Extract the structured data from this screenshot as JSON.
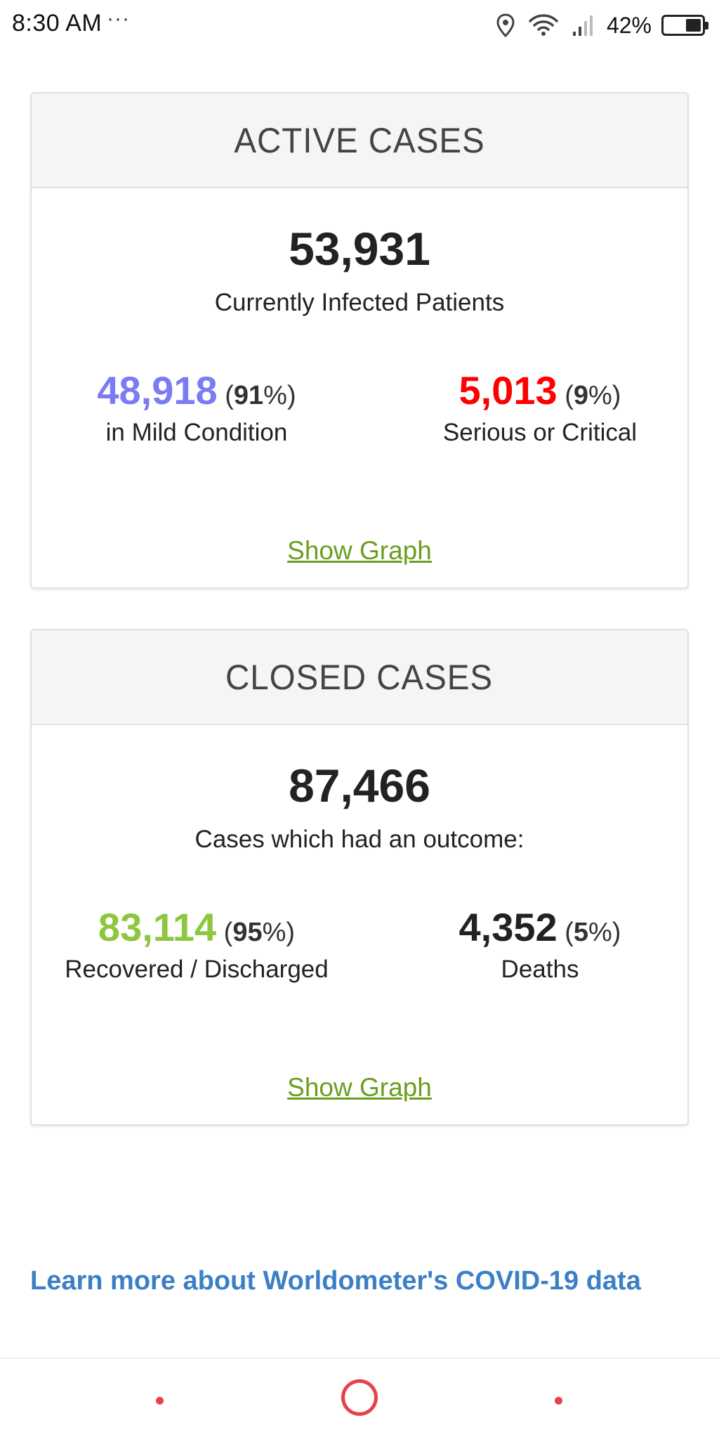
{
  "status_bar": {
    "time": "8:30 AM",
    "more_indicator": "···",
    "icons": [
      "location-icon",
      "wifi-icon",
      "cellular-signal-icon",
      "battery-icon"
    ],
    "battery_percent": "42%",
    "battery_level": 0.42
  },
  "colors": {
    "mild": "#7b7bf5",
    "critical": "#ff0000",
    "recovered": "#8dc63f",
    "deaths": "#222222",
    "link_green": "#6a9e1f",
    "link_blue": "#3b7fc4",
    "nav_accent": "#e5434b"
  },
  "active_cases": {
    "title": "ACTIVE CASES",
    "total": "53,931",
    "subtitle": "Currently Infected Patients",
    "left": {
      "number": "48,918",
      "pct_open": " (",
      "pct": "91",
      "pct_close": "%)",
      "label": "in Mild Condition"
    },
    "right": {
      "number": "5,013",
      "pct_open": " (",
      "pct": "9",
      "pct_close": "%)",
      "label": "Serious or Critical"
    },
    "show_graph": "Show Graph"
  },
  "closed_cases": {
    "title": "CLOSED CASES",
    "total": "87,466",
    "subtitle": "Cases which had an outcome:",
    "left": {
      "number": "83,114",
      "pct_open": " (",
      "pct": "95",
      "pct_close": "%)",
      "label": "Recovered / Discharged"
    },
    "right": {
      "number": "4,352",
      "pct_open": " (",
      "pct": "5",
      "pct_close": "%)",
      "label": "Deaths"
    },
    "show_graph": "Show Graph"
  },
  "learn_more": "Learn more about Worldometer's COVID-19 data",
  "nav_bar": {
    "buttons": [
      "back-button",
      "home-button",
      "recent-apps-button"
    ]
  }
}
